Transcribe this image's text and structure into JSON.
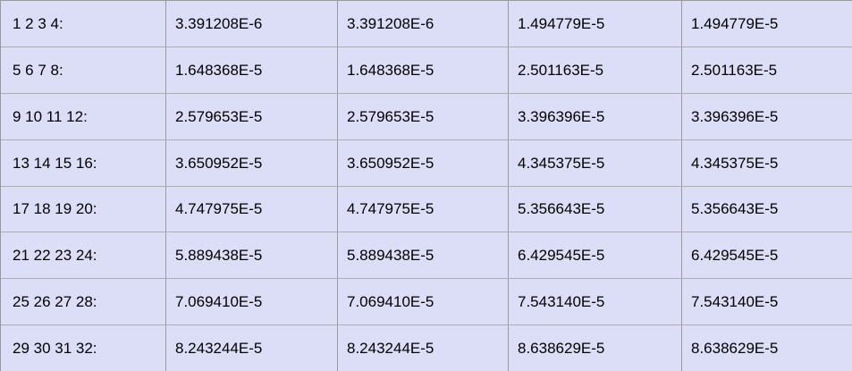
{
  "colors": {
    "table_background": "#dcddf6",
    "grid_vertical": "#9a9a9a",
    "grid_horizontal": "#adadad",
    "text": "#000000"
  },
  "table": {
    "rows": [
      {
        "label": "1 2 3 4:",
        "values": [
          "3.391208E-6",
          "3.391208E-6",
          "1.494779E-5",
          "1.494779E-5"
        ]
      },
      {
        "label": "5 6 7 8:",
        "values": [
          "1.648368E-5",
          "1.648368E-5",
          "2.501163E-5",
          "2.501163E-5"
        ]
      },
      {
        "label": "9 10 11 12:",
        "values": [
          "2.579653E-5",
          "2.579653E-5",
          "3.396396E-5",
          "3.396396E-5"
        ]
      },
      {
        "label": "13 14 15 16:",
        "values": [
          "3.650952E-5",
          "3.650952E-5",
          "4.345375E-5",
          "4.345375E-5"
        ]
      },
      {
        "label": "17 18 19 20:",
        "values": [
          "4.747975E-5",
          "4.747975E-5",
          "5.356643E-5",
          "5.356643E-5"
        ]
      },
      {
        "label": "21 22 23 24:",
        "values": [
          "5.889438E-5",
          "5.889438E-5",
          "6.429545E-5",
          "6.429545E-5"
        ]
      },
      {
        "label": "25 26 27 28:",
        "values": [
          "7.069410E-5",
          "7.069410E-5",
          "7.543140E-5",
          "7.543140E-5"
        ]
      },
      {
        "label": "29 30 31 32:",
        "values": [
          "8.243244E-5",
          "8.243244E-5",
          "8.638629E-5",
          "8.638629E-5"
        ]
      }
    ]
  }
}
